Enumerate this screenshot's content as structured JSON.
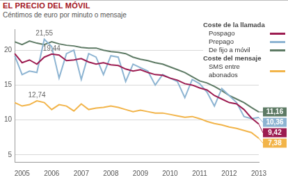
{
  "chart_data": {
    "type": "line",
    "title": "EL PRECIO DEL MÓVIL",
    "subtitle": "Céntimos de euro por minuto o mensaje",
    "categories": [
      null,
      "2005",
      null,
      null,
      null,
      "2006",
      null,
      null,
      null,
      "2007",
      null,
      null,
      null,
      "2008",
      null,
      null,
      null,
      "2009",
      null,
      null,
      null,
      "2010",
      null,
      null,
      null,
      "2011",
      null,
      null,
      null,
      "2012",
      null,
      null,
      null,
      "2013"
    ],
    "ylim": [
      4,
      23
    ],
    "yticks": [
      5,
      10,
      15,
      20
    ],
    "grid": true,
    "legend": "upper right",
    "series": [
      {
        "name": "Pospago",
        "group": "Coste de la llamada",
        "color": "#9c1b50",
        "values": [
          19.5,
          18.2,
          18.6,
          18.0,
          19.0,
          19.44,
          19.3,
          18.5,
          18.6,
          18.8,
          18.3,
          18.0,
          18.2,
          17.9,
          17.8,
          17.3,
          17.0,
          17.2,
          16.8,
          16.5,
          16.4,
          16.0,
          15.7,
          15.2,
          15.0,
          14.6,
          14.3,
          13.5,
          13.0,
          12.5,
          12.3,
          11.5,
          10.3,
          9.42
        ],
        "value_labels": [
          null,
          null,
          null,
          null,
          null,
          "19,44",
          null,
          null,
          null,
          null,
          null,
          null,
          null,
          null,
          null,
          null,
          null,
          null,
          null,
          null,
          null,
          null,
          null,
          null,
          null,
          null,
          null,
          null,
          null,
          null,
          null,
          null,
          null,
          "9,42"
        ]
      },
      {
        "name": "Prepago",
        "group": "Coste de la llamada",
        "color": "#8db4d2",
        "values": [
          19.2,
          16.5,
          17.0,
          16.8,
          21.55,
          20.5,
          16.0,
          19.5,
          20.0,
          15.8,
          19.5,
          19.0,
          16.5,
          19.2,
          19.0,
          15.5,
          18.0,
          17.5,
          17.0,
          15.0,
          16.5,
          16.0,
          15.5,
          13.2,
          15.8,
          15.2,
          14.0,
          12.0,
          14.5,
          13.5,
          12.5,
          10.5,
          10.2,
          10.36
        ],
        "value_labels": [
          null,
          null,
          null,
          null,
          "21,55",
          null,
          null,
          null,
          null,
          null,
          null,
          null,
          null,
          null,
          null,
          null,
          null,
          null,
          null,
          null,
          null,
          null,
          null,
          null,
          null,
          null,
          null,
          null,
          null,
          null,
          null,
          null,
          null,
          "10,36"
        ]
      },
      {
        "name": "De fijo a móvil",
        "group": "Coste de la llamada",
        "color": "#5d7a64",
        "values": [
          21.2,
          20.8,
          21.3,
          21.0,
          20.8,
          21.2,
          20.9,
          20.7,
          20.6,
          20.4,
          20.3,
          20.3,
          20.0,
          19.8,
          19.7,
          19.5,
          19.0,
          18.7,
          18.5,
          18.2,
          18.0,
          17.6,
          17.2,
          16.8,
          16.2,
          15.6,
          15.3,
          14.8,
          14.2,
          13.5,
          13.0,
          12.5,
          11.8,
          11.16
        ],
        "value_labels": [
          null,
          null,
          null,
          null,
          null,
          null,
          null,
          null,
          null,
          null,
          null,
          null,
          null,
          null,
          null,
          null,
          null,
          null,
          null,
          null,
          null,
          null,
          null,
          null,
          null,
          null,
          null,
          null,
          null,
          null,
          null,
          null,
          null,
          "11,16"
        ]
      },
      {
        "name": "SMS entre abonados",
        "group": "Coste del mensaje",
        "color": "#f2b449",
        "values": [
          12.5,
          12.0,
          12.2,
          12.74,
          12.5,
          11.5,
          12.2,
          12.0,
          11.3,
          12.3,
          11.5,
          11.7,
          11.8,
          12.0,
          11.8,
          11.5,
          11.2,
          11.4,
          11.2,
          11.0,
          11.0,
          10.8,
          10.6,
          10.4,
          10.5,
          10.2,
          9.8,
          9.5,
          9.3,
          9.0,
          8.8,
          8.5,
          8.2,
          7.38
        ],
        "value_labels": [
          null,
          null,
          null,
          "12,74",
          null,
          null,
          null,
          null,
          null,
          null,
          null,
          null,
          null,
          null,
          null,
          null,
          null,
          null,
          null,
          null,
          null,
          null,
          null,
          null,
          null,
          null,
          null,
          null,
          null,
          null,
          null,
          null,
          null,
          "7,38"
        ]
      }
    ]
  }
}
